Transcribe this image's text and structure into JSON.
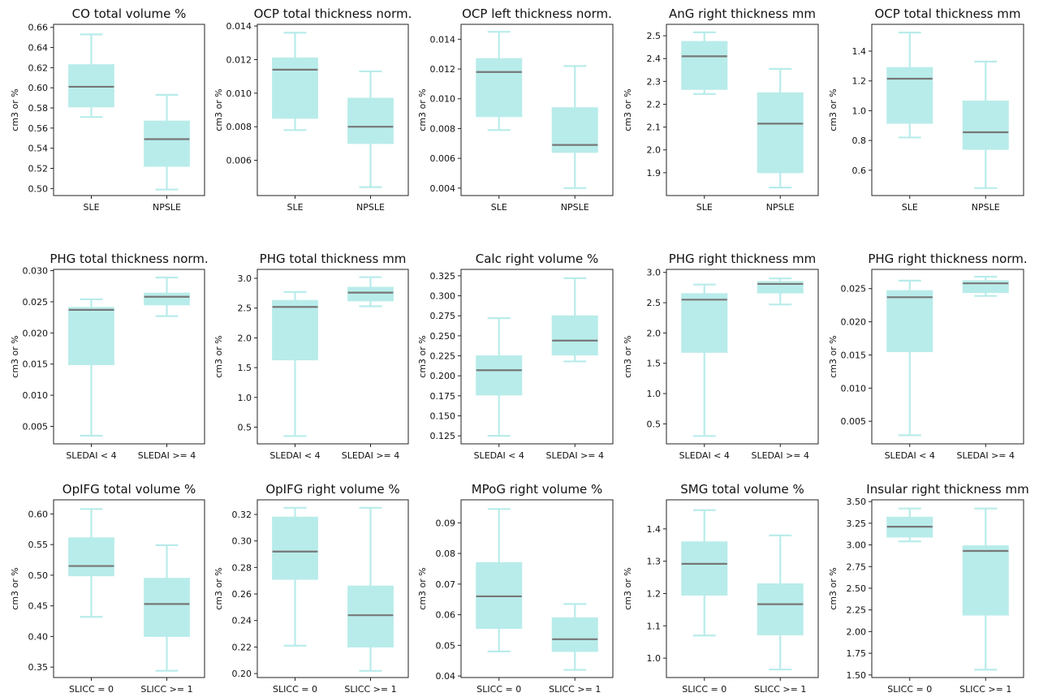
{
  "figure": {
    "background": "#ffffff",
    "box_fill": "#b8ecea",
    "whisker_color": "#b8ecea",
    "median_color": "#777777"
  },
  "chart_data": [
    {
      "type": "box",
      "title": "CO total volume %",
      "ylabel": "cm3 or %",
      "categories": [
        "SLE",
        "NPSLE"
      ],
      "ylim": [
        0.493,
        0.663
      ],
      "yticks": [
        0.5,
        0.52,
        0.54,
        0.56,
        0.58,
        0.6,
        0.62,
        0.64,
        0.66
      ],
      "ytick_labels": [
        "0.50",
        "0.52",
        "0.54",
        "0.56",
        "0.58",
        "0.60",
        "0.62",
        "0.64",
        "0.66"
      ],
      "boxes": [
        {
          "min": 0.571,
          "q1": 0.581,
          "median": 0.601,
          "q3": 0.623,
          "max": 0.653
        },
        {
          "min": 0.499,
          "q1": 0.522,
          "median": 0.549,
          "q3": 0.567,
          "max": 0.593
        }
      ]
    },
    {
      "type": "box",
      "title": "OCP total thickness norm.",
      "ylabel": "cm3 or %",
      "categories": [
        "SLE",
        "NPSLE"
      ],
      "ylim": [
        0.0039,
        0.0141
      ],
      "yticks": [
        0.006,
        0.008,
        0.01,
        0.012,
        0.014
      ],
      "ytick_labels": [
        "0.006",
        "0.008",
        "0.010",
        "0.012",
        "0.014"
      ],
      "boxes": [
        {
          "min": 0.0078,
          "q1": 0.0085,
          "median": 0.0114,
          "q3": 0.0121,
          "max": 0.0136
        },
        {
          "min": 0.0044,
          "q1": 0.007,
          "median": 0.008,
          "q3": 0.0097,
          "max": 0.0113
        }
      ]
    },
    {
      "type": "box",
      "title": "OCP left thickness norm.",
      "ylabel": "cm3 or %",
      "categories": [
        "SLE",
        "NPSLE"
      ],
      "ylim": [
        0.0035,
        0.015
      ],
      "yticks": [
        0.004,
        0.006,
        0.008,
        0.01,
        0.012,
        0.014
      ],
      "ytick_labels": [
        "0.004",
        "0.006",
        "0.008",
        "0.010",
        "0.012",
        "0.014"
      ],
      "boxes": [
        {
          "min": 0.0079,
          "q1": 0.0088,
          "median": 0.0118,
          "q3": 0.0127,
          "max": 0.0145
        },
        {
          "min": 0.004,
          "q1": 0.0064,
          "median": 0.0069,
          "q3": 0.0094,
          "max": 0.0122
        }
      ]
    },
    {
      "type": "box",
      "title": "AnG right thickness mm",
      "ylabel": "cm3 or %",
      "categories": [
        "SLE",
        "NPSLE"
      ],
      "ylim": [
        1.8,
        2.55
      ],
      "yticks": [
        1.9,
        2.0,
        2.1,
        2.2,
        2.3,
        2.4,
        2.5
      ],
      "ytick_labels": [
        "1.9",
        "2.0",
        "2.1",
        "2.2",
        "2.3",
        "2.4",
        "2.5"
      ],
      "boxes": [
        {
          "min": 2.245,
          "q1": 2.265,
          "median": 2.41,
          "q3": 2.475,
          "max": 2.515
        },
        {
          "min": 1.835,
          "q1": 1.9,
          "median": 2.115,
          "q3": 2.25,
          "max": 2.355
        }
      ]
    },
    {
      "type": "box",
      "title": "OCP total thickness mm",
      "ylabel": "cm3 or %",
      "categories": [
        "SLE",
        "NPSLE"
      ],
      "ylim": [
        0.43,
        1.58
      ],
      "yticks": [
        0.6,
        0.8,
        1.0,
        1.2,
        1.4
      ],
      "ytick_labels": [
        "0.6",
        "0.8",
        "1.0",
        "1.2",
        "1.4"
      ],
      "boxes": [
        {
          "min": 0.82,
          "q1": 0.915,
          "median": 1.215,
          "q3": 1.29,
          "max": 1.525
        },
        {
          "min": 0.48,
          "q1": 0.74,
          "median": 0.855,
          "q3": 1.065,
          "max": 1.33
        }
      ]
    },
    {
      "type": "box",
      "title": "PHG total thickness norm.",
      "ylabel": "cm3 or %",
      "categories": [
        "SLEDAI < 4",
        "SLEDAI >= 4"
      ],
      "ylim": [
        0.0022,
        0.0302
      ],
      "yticks": [
        0.005,
        0.01,
        0.015,
        0.02,
        0.025,
        0.03
      ],
      "ytick_labels": [
        "0.005",
        "0.010",
        "0.015",
        "0.020",
        "0.025",
        "0.030"
      ],
      "boxes": [
        {
          "min": 0.0035,
          "q1": 0.0149,
          "median": 0.0237,
          "q3": 0.0241,
          "max": 0.0254
        },
        {
          "min": 0.0227,
          "q1": 0.0245,
          "median": 0.0258,
          "q3": 0.0264,
          "max": 0.0289
        }
      ]
    },
    {
      "type": "box",
      "title": "PHG total thickness mm",
      "ylabel": "cm3 or %",
      "categories": [
        "SLEDAI < 4",
        "SLEDAI >= 4"
      ],
      "ylim": [
        0.22,
        3.15
      ],
      "yticks": [
        0.5,
        1.0,
        1.5,
        2.0,
        2.5,
        3.0
      ],
      "ytick_labels": [
        "0.5",
        "1.0",
        "1.5",
        "2.0",
        "2.5",
        "3.0"
      ],
      "boxes": [
        {
          "min": 0.35,
          "q1": 1.63,
          "median": 2.52,
          "q3": 2.63,
          "max": 2.77
        },
        {
          "min": 2.53,
          "q1": 2.62,
          "median": 2.76,
          "q3": 2.85,
          "max": 3.02
        }
      ]
    },
    {
      "type": "box",
      "title": "Calc right volume %",
      "ylabel": "cm3 or %",
      "categories": [
        "SLEDAI < 4",
        "SLEDAI >= 4"
      ],
      "ylim": [
        0.115,
        0.333
      ],
      "yticks": [
        0.125,
        0.15,
        0.175,
        0.2,
        0.225,
        0.25,
        0.275,
        0.3,
        0.325
      ],
      "ytick_labels": [
        "0.125",
        "0.150",
        "0.175",
        "0.200",
        "0.225",
        "0.250",
        "0.275",
        "0.300",
        "0.325"
      ],
      "boxes": [
        {
          "min": 0.125,
          "q1": 0.176,
          "median": 0.207,
          "q3": 0.225,
          "max": 0.272
        },
        {
          "min": 0.218,
          "q1": 0.226,
          "median": 0.244,
          "q3": 0.275,
          "max": 0.322
        }
      ]
    },
    {
      "type": "box",
      "title": "PHG right thickness mm",
      "ylabel": "cm3 or %",
      "categories": [
        "SLEDAI < 4",
        "SLEDAI >= 4"
      ],
      "ylim": [
        0.17,
        3.05
      ],
      "yticks": [
        0.5,
        1.0,
        1.5,
        2.0,
        2.5,
        3.0
      ],
      "ytick_labels": [
        "0.5",
        "1.0",
        "1.5",
        "2.0",
        "2.5",
        "3.0"
      ],
      "boxes": [
        {
          "min": 0.3,
          "q1": 1.68,
          "median": 2.55,
          "q3": 2.65,
          "max": 2.8
        },
        {
          "min": 2.47,
          "q1": 2.66,
          "median": 2.81,
          "q3": 2.85,
          "max": 2.9
        }
      ]
    },
    {
      "type": "box",
      "title": "PHG right thickness norm.",
      "ylabel": "cm3 or %",
      "categories": [
        "SLEDAI < 4",
        "SLEDAI >= 4"
      ],
      "ylim": [
        0.0016,
        0.0279
      ],
      "yticks": [
        0.005,
        0.01,
        0.015,
        0.02,
        0.025
      ],
      "ytick_labels": [
        "0.005",
        "0.010",
        "0.015",
        "0.020",
        "0.025"
      ],
      "boxes": [
        {
          "min": 0.0029,
          "q1": 0.0155,
          "median": 0.0237,
          "q3": 0.0247,
          "max": 0.0262
        },
        {
          "min": 0.0239,
          "q1": 0.0244,
          "median": 0.0258,
          "q3": 0.0262,
          "max": 0.0268
        }
      ]
    },
    {
      "type": "box",
      "title": "OpIFG total volume %",
      "ylabel": "cm3 or %",
      "categories": [
        "SLICC = 0",
        "SLICC >= 1"
      ],
      "ylim": [
        0.333,
        0.623
      ],
      "yticks": [
        0.35,
        0.4,
        0.45,
        0.5,
        0.55,
        0.6
      ],
      "ytick_labels": [
        "0.35",
        "0.40",
        "0.45",
        "0.50",
        "0.55",
        "0.60"
      ],
      "boxes": [
        {
          "min": 0.432,
          "q1": 0.499,
          "median": 0.515,
          "q3": 0.561,
          "max": 0.608
        },
        {
          "min": 0.344,
          "q1": 0.4,
          "median": 0.453,
          "q3": 0.495,
          "max": 0.549
        }
      ]
    },
    {
      "type": "box",
      "title": "OpIFG right volume %",
      "ylabel": "cm3 or %",
      "categories": [
        "SLICC = 0",
        "SLICC >= 1"
      ],
      "ylim": [
        0.197,
        0.331
      ],
      "yticks": [
        0.2,
        0.22,
        0.24,
        0.26,
        0.28,
        0.3,
        0.32
      ],
      "ytick_labels": [
        "0.20",
        "0.22",
        "0.24",
        "0.26",
        "0.28",
        "0.30",
        "0.32"
      ],
      "boxes": [
        {
          "min": 0.221,
          "q1": 0.271,
          "median": 0.292,
          "q3": 0.318,
          "max": 0.325
        },
        {
          "min": 0.202,
          "q1": 0.22,
          "median": 0.244,
          "q3": 0.266,
          "max": 0.325
        }
      ]
    },
    {
      "type": "box",
      "title": "MPoG right volume %",
      "ylabel": "cm3 or %",
      "categories": [
        "SLICC = 0",
        "SLICC >= 1"
      ],
      "ylim": [
        0.0395,
        0.0975
      ],
      "yticks": [
        0.04,
        0.05,
        0.06,
        0.07,
        0.08,
        0.09
      ],
      "ytick_labels": [
        "0.04",
        "0.05",
        "0.06",
        "0.07",
        "0.08",
        "0.09"
      ],
      "boxes": [
        {
          "min": 0.048,
          "q1": 0.0555,
          "median": 0.066,
          "q3": 0.077,
          "max": 0.0945
        },
        {
          "min": 0.042,
          "q1": 0.048,
          "median": 0.052,
          "q3": 0.059,
          "max": 0.0635
        }
      ]
    },
    {
      "type": "box",
      "title": "SMG total volume %",
      "ylabel": "cm3 or %",
      "categories": [
        "SLICC = 0",
        "SLICC >= 1"
      ],
      "ylim": [
        0.94,
        1.49
      ],
      "yticks": [
        1.0,
        1.1,
        1.2,
        1.3,
        1.4
      ],
      "ytick_labels": [
        "1.0",
        "1.1",
        "1.2",
        "1.3",
        "1.4"
      ],
      "boxes": [
        {
          "min": 1.07,
          "q1": 1.195,
          "median": 1.292,
          "q3": 1.36,
          "max": 1.458
        },
        {
          "min": 0.965,
          "q1": 1.072,
          "median": 1.167,
          "q3": 1.23,
          "max": 1.38
        }
      ]
    },
    {
      "type": "box",
      "title": "Insular right thickness mm",
      "ylabel": "cm3 or %",
      "categories": [
        "SLICC = 0",
        "SLICC >= 1"
      ],
      "ylim": [
        1.47,
        3.52
      ],
      "yticks": [
        1.5,
        1.75,
        2.0,
        2.25,
        2.5,
        2.75,
        3.0,
        3.25,
        3.5
      ],
      "ytick_labels": [
        "1.50",
        "1.75",
        "2.00",
        "2.25",
        "2.50",
        "2.75",
        "3.00",
        "3.25",
        "3.50"
      ],
      "boxes": [
        {
          "min": 3.04,
          "q1": 3.09,
          "median": 3.21,
          "q3": 3.32,
          "max": 3.42
        },
        {
          "min": 1.56,
          "q1": 2.19,
          "median": 2.93,
          "q3": 2.99,
          "max": 3.42
        }
      ]
    }
  ]
}
